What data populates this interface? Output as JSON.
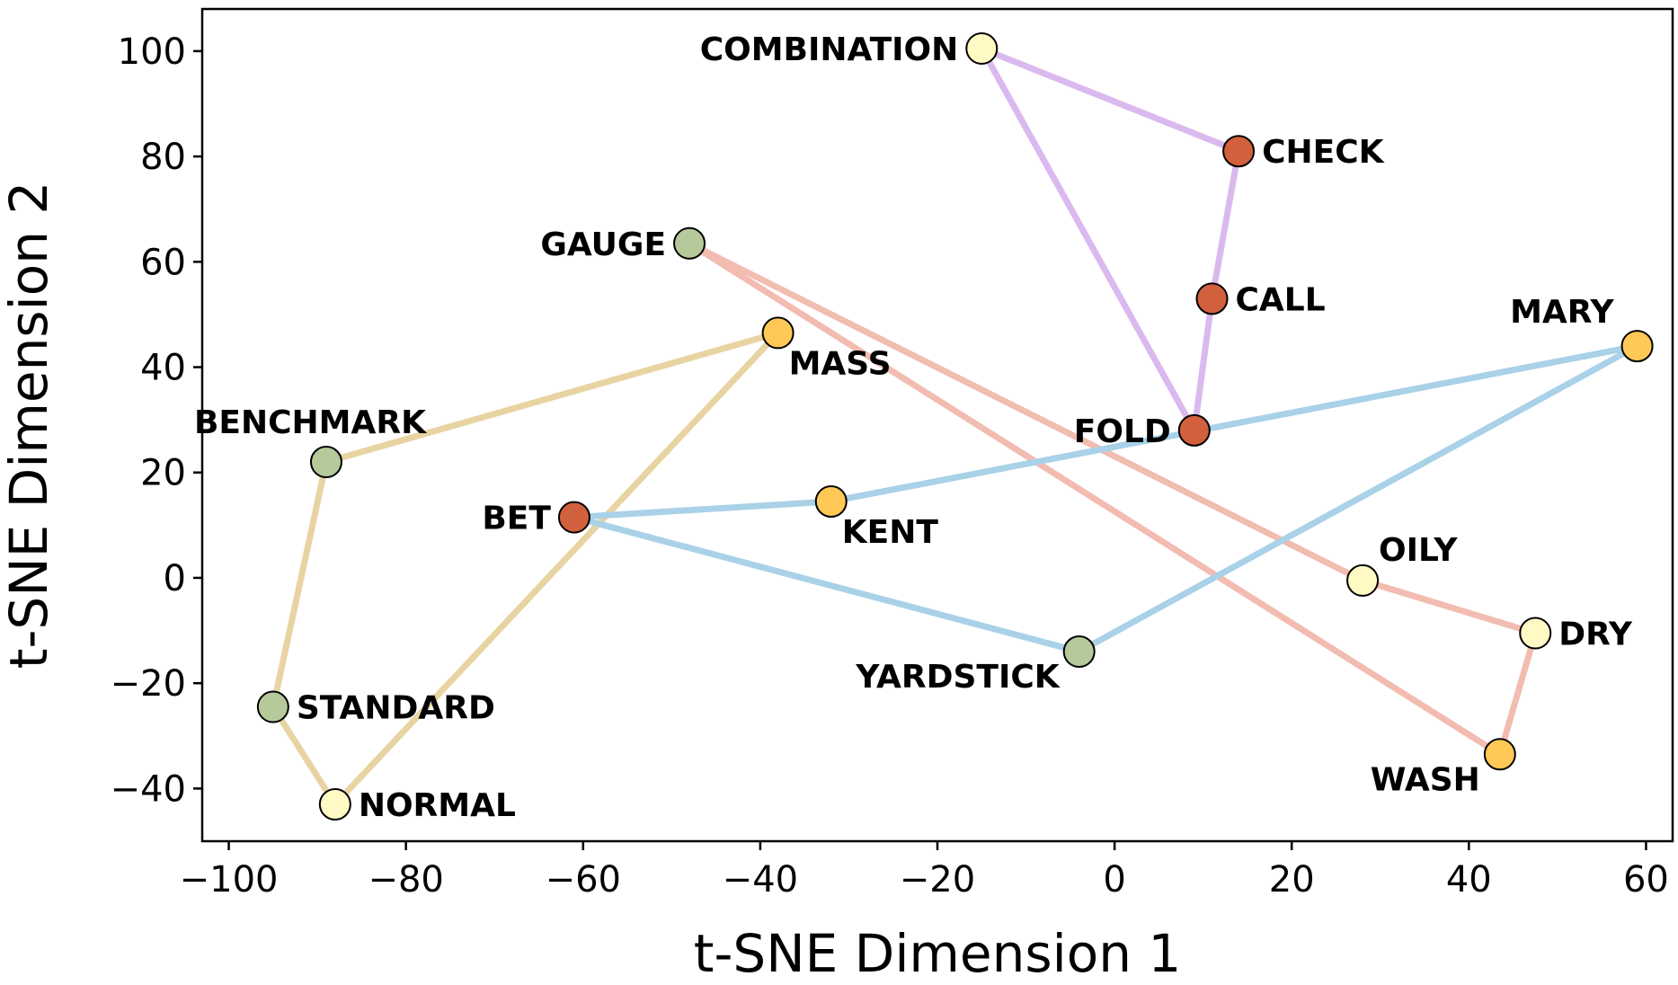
{
  "chart_data": {
    "type": "scatter",
    "title": "",
    "xlabel": "t-SNE Dimension 1",
    "ylabel": "t-SNE Dimension 2",
    "xlim": [
      -103,
      63
    ],
    "ylim": [
      -50,
      108
    ],
    "xticks": [
      -100,
      -80,
      -60,
      -40,
      -20,
      0,
      20,
      40,
      60
    ],
    "yticks": [
      -40,
      -20,
      0,
      20,
      40,
      60,
      80,
      100
    ],
    "xtick_labels": [
      "−100",
      "−80",
      "−60",
      "−40",
      "−20",
      "0",
      "20",
      "40",
      "60"
    ],
    "ytick_labels": [
      "−40",
      "−20",
      "0",
      "20",
      "40",
      "60",
      "80",
      "100"
    ],
    "grid": false,
    "point_colors": {
      "green": "#b5c99a",
      "yellow": "#ffc857",
      "red": "#d1603d",
      "cream": "#fff9c4"
    },
    "points": [
      {
        "label": "COMBINATION",
        "x": -15,
        "y": 100.5,
        "color": "cream",
        "label_pos": "left"
      },
      {
        "label": "CHECK",
        "x": 14,
        "y": 81,
        "color": "red",
        "label_pos": "right"
      },
      {
        "label": "CALL",
        "x": 11,
        "y": 53,
        "color": "red",
        "label_pos": "right"
      },
      {
        "label": "FOLD",
        "x": 9,
        "y": 28,
        "color": "red",
        "label_pos": "left"
      },
      {
        "label": "GAUGE",
        "x": -48,
        "y": 63.5,
        "color": "green",
        "label_pos": "left"
      },
      {
        "label": "MASS",
        "x": -38,
        "y": 46.5,
        "color": "yellow",
        "label_pos": "below-right"
      },
      {
        "label": "BENCHMARK",
        "x": -89,
        "y": 22,
        "color": "green",
        "label_pos": "above"
      },
      {
        "label": "STANDARD",
        "x": -95,
        "y": -24.5,
        "color": "green",
        "label_pos": "right"
      },
      {
        "label": "NORMAL",
        "x": -88,
        "y": -43,
        "color": "cream",
        "label_pos": "right"
      },
      {
        "label": "BET",
        "x": -61,
        "y": 11.5,
        "color": "red",
        "label_pos": "left"
      },
      {
        "label": "KENT",
        "x": -32,
        "y": 14.5,
        "color": "yellow",
        "label_pos": "below-right"
      },
      {
        "label": "MARY",
        "x": 59,
        "y": 44,
        "color": "yellow",
        "label_pos": "above-left"
      },
      {
        "label": "YARDSTICK",
        "x": -4,
        "y": -14,
        "color": "green",
        "label_pos": "below-left"
      },
      {
        "label": "OILY",
        "x": 28,
        "y": -0.5,
        "color": "cream",
        "label_pos": "above-right"
      },
      {
        "label": "DRY",
        "x": 47.5,
        "y": -10.5,
        "color": "cream",
        "label_pos": "right"
      },
      {
        "label": "WASH",
        "x": 43.5,
        "y": -33.5,
        "color": "yellow",
        "label_pos": "below-left"
      }
    ],
    "groups": [
      {
        "name": "purple-group",
        "color": "#dab9ef",
        "members": [
          "COMBINATION",
          "CHECK",
          "CALL",
          "FOLD",
          "COMBINATION"
        ]
      },
      {
        "name": "pink-group",
        "color": "#f2bcb1",
        "members": [
          "GAUGE",
          "OILY",
          "DRY",
          "WASH",
          "GAUGE"
        ]
      },
      {
        "name": "tan-group",
        "color": "#e8d4a2",
        "members": [
          "MASS",
          "BENCHMARK",
          "STANDARD",
          "NORMAL",
          "MASS"
        ]
      },
      {
        "name": "blue-group",
        "color": "#a9d1e8",
        "members": [
          "BET",
          "KENT",
          "MARY",
          "YARDSTICK",
          "BET"
        ]
      }
    ]
  }
}
